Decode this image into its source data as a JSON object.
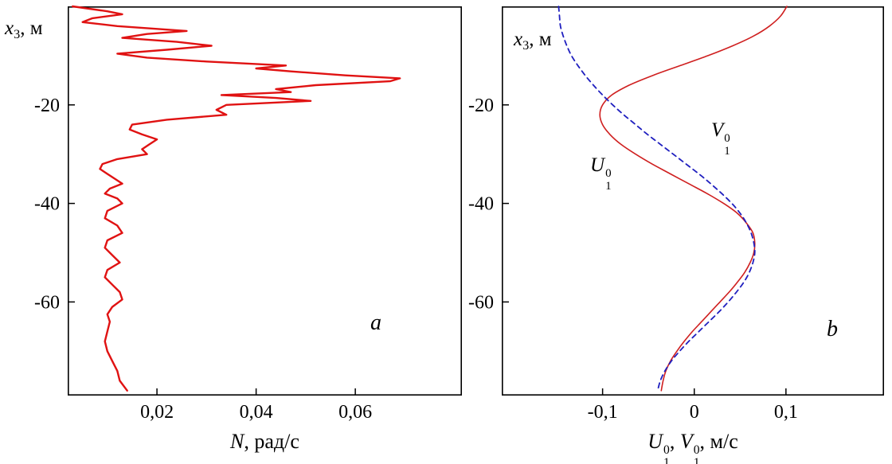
{
  "figure": {
    "background": "#ffffff",
    "frame_color": "#000000"
  },
  "chart_data": [
    {
      "type": "line",
      "panel": "a",
      "title": "",
      "corner_label": "a",
      "ylabel_parts": [
        {
          "t": "x",
          "i": true
        },
        {
          "t": "3",
          "sub": true
        },
        {
          "t": ", м"
        }
      ],
      "xlabel_parts": [
        {
          "t": "N",
          "i": true
        },
        {
          "t": ", рад/с"
        }
      ],
      "xlim": [
        0.002,
        0.0815
      ],
      "ylim": [
        -79,
        0
      ],
      "grid": false,
      "legend": "none",
      "xticks": [
        {
          "v": 0.02,
          "label": "0,02"
        },
        {
          "v": 0.04,
          "label": "0,04"
        },
        {
          "v": 0.06,
          "label": "0,06"
        }
      ],
      "yticks": [
        {
          "v": -20,
          "label": "-20"
        },
        {
          "v": -40,
          "label": "-40"
        },
        {
          "v": -60,
          "label": "-60"
        }
      ],
      "series": [
        {
          "name": "buoyancy-frequency-profile",
          "color": "#e01212",
          "width": 2.4,
          "dash": null,
          "smooth": false,
          "depth": [
            0,
            -1,
            -1.6,
            -2.4,
            -3.2,
            -4,
            -5,
            -5.6,
            -6.4,
            -7.2,
            -8,
            -8.8,
            -9.6,
            -10.4,
            -11.2,
            -12,
            -12.6,
            -13.2,
            -14,
            -14.6,
            -15.2,
            -16,
            -16.8,
            -17.4,
            -18,
            -18.6,
            -19.2,
            -20,
            -21,
            -22,
            -23,
            -24,
            -25,
            -26,
            -27,
            -28,
            -29,
            -30,
            -31,
            -32,
            -33,
            -34,
            -35,
            -36,
            -37,
            -38,
            -39,
            -40,
            -41.5,
            -43,
            -44.5,
            -46,
            -47.5,
            -49,
            -50.5,
            -52,
            -53.5,
            -55,
            -56.5,
            -58,
            -59.5,
            -61,
            -62.5,
            -64,
            -66,
            -68,
            -70,
            -72,
            -74,
            -76,
            -78
          ],
          "value": [
            0.003,
            0.01,
            0.013,
            0.007,
            0.005,
            0.012,
            0.026,
            0.018,
            0.013,
            0.024,
            0.031,
            0.022,
            0.012,
            0.018,
            0.03,
            0.046,
            0.04,
            0.047,
            0.058,
            0.069,
            0.067,
            0.052,
            0.044,
            0.047,
            0.033,
            0.044,
            0.051,
            0.034,
            0.032,
            0.034,
            0.022,
            0.015,
            0.0145,
            0.017,
            0.02,
            0.0185,
            0.017,
            0.018,
            0.012,
            0.009,
            0.0085,
            0.01,
            0.0115,
            0.013,
            0.0105,
            0.0095,
            0.012,
            0.013,
            0.01,
            0.0095,
            0.012,
            0.013,
            0.01,
            0.0095,
            0.011,
            0.0125,
            0.01,
            0.0095,
            0.011,
            0.0125,
            0.013,
            0.011,
            0.01,
            0.0105,
            0.01,
            0.0095,
            0.01,
            0.011,
            0.012,
            0.0125,
            0.014
          ]
        }
      ]
    },
    {
      "type": "line",
      "panel": "b",
      "title": "",
      "corner_label": "b",
      "ylabel_parts": [
        {
          "t": "x",
          "i": true
        },
        {
          "t": "3",
          "sub": true
        },
        {
          "t": ", м"
        }
      ],
      "xlabel_parts": [
        {
          "t": "U",
          "i": true
        },
        {
          "stack": [
            "0",
            "1"
          ]
        },
        {
          "t": ", "
        },
        {
          "t": "V",
          "i": true
        },
        {
          "stack": [
            "0",
            "1"
          ]
        },
        {
          "t": ", м/с"
        }
      ],
      "xlim": [
        -0.21,
        0.207
      ],
      "ylim": [
        -79,
        0
      ],
      "grid": false,
      "legend": "inline-labels",
      "xticks": [
        {
          "v": -0.1,
          "label": "-0,1"
        },
        {
          "v": 0,
          "label": "0"
        },
        {
          "v": 0.1,
          "label": "0,1"
        }
      ],
      "yticks": [
        {
          "v": -20,
          "label": "-20"
        },
        {
          "v": -40,
          "label": "-40"
        },
        {
          "v": -60,
          "label": "-60"
        }
      ],
      "series": [
        {
          "name": "U1-velocity-profile",
          "color": "#cf1f1f",
          "width": 1.6,
          "dash": null,
          "smooth": true,
          "depth": [
            0,
            -2,
            -4,
            -6,
            -8,
            -10,
            -12,
            -14,
            -16,
            -18,
            -20,
            -22,
            -24,
            -26,
            -28,
            -30,
            -32,
            -34,
            -36,
            -38,
            -40,
            -42,
            -44,
            -46,
            -48,
            -50,
            -52,
            -54,
            -56,
            -58,
            -60,
            -62,
            -64,
            -66,
            -68,
            -70,
            -72,
            -74,
            -76,
            -78
          ],
          "value": [
            0.101,
            0.094,
            0.082,
            0.065,
            0.042,
            0.015,
            -0.015,
            -0.045,
            -0.071,
            -0.09,
            -0.1,
            -0.103,
            -0.1,
            -0.092,
            -0.08,
            -0.064,
            -0.046,
            -0.026,
            -0.006,
            0.014,
            0.032,
            0.047,
            0.057,
            0.064,
            0.066,
            0.065,
            0.061,
            0.055,
            0.047,
            0.038,
            0.028,
            0.018,
            0.008,
            -0.002,
            -0.011,
            -0.019,
            -0.026,
            -0.031,
            -0.034,
            -0.036
          ]
        },
        {
          "name": "V1-velocity-profile",
          "color": "#1f1fbf",
          "width": 1.8,
          "dash": "6 5",
          "smooth": true,
          "depth": [
            0,
            -2,
            -4,
            -6,
            -8,
            -10,
            -12,
            -14,
            -16,
            -18,
            -20,
            -22,
            -24,
            -26,
            -28,
            -30,
            -32,
            -34,
            -36,
            -38,
            -40,
            -42,
            -44,
            -46,
            -48,
            -50,
            -52,
            -54,
            -56,
            -58,
            -60,
            -62,
            -64,
            -66,
            -68,
            -70,
            -72,
            -74,
            -76,
            -78
          ],
          "value": [
            -0.148,
            -0.147,
            -0.146,
            -0.143,
            -0.139,
            -0.134,
            -0.127,
            -0.119,
            -0.11,
            -0.1,
            -0.089,
            -0.077,
            -0.064,
            -0.051,
            -0.037,
            -0.023,
            -0.009,
            0.005,
            0.018,
            0.03,
            0.041,
            0.05,
            0.057,
            0.062,
            0.065,
            0.066,
            0.064,
            0.06,
            0.054,
            0.046,
            0.037,
            0.027,
            0.016,
            0.005,
            -0.006,
            -0.016,
            -0.025,
            -0.032,
            -0.037,
            -0.04
          ]
        }
      ],
      "curve_labels": [
        {
          "name": "U-label",
          "parts": [
            {
              "t": "U",
              "i": true
            },
            {
              "stack": [
                "0",
                "1"
              ]
            }
          ]
        },
        {
          "name": "V-label",
          "parts": [
            {
              "t": "V",
              "i": true
            },
            {
              "stack": [
                "0",
                "1"
              ]
            }
          ]
        }
      ]
    }
  ]
}
